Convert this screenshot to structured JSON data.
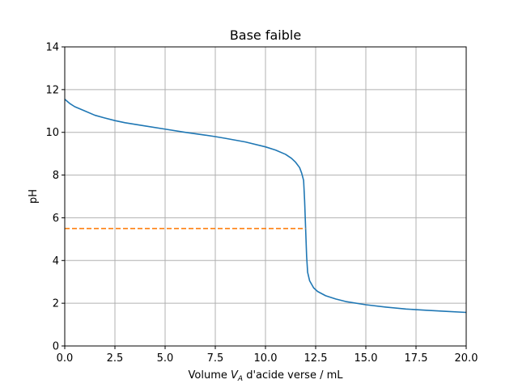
{
  "chart_data": {
    "type": "line",
    "title": "Base faible",
    "xlabel_prefix": "Volume ",
    "xlabel_var": "V",
    "xlabel_sub": "A",
    "xlabel_suffix": " d'acide verse / mL",
    "ylabel": "pH",
    "xlim": [
      0,
      20
    ],
    "ylim": [
      0,
      14
    ],
    "xticks": [
      0,
      2.5,
      5,
      7.5,
      10,
      12.5,
      15,
      17.5,
      20
    ],
    "xtick_labels": [
      "0.0",
      "2.5",
      "5.0",
      "7.5",
      "10.0",
      "12.5",
      "15.0",
      "17.5",
      "20.0"
    ],
    "yticks": [
      0,
      2,
      4,
      6,
      8,
      10,
      12,
      14
    ],
    "ytick_labels": [
      "0",
      "2",
      "4",
      "6",
      "8",
      "10",
      "12",
      "14"
    ],
    "grid": true,
    "series": [
      {
        "color": "#1f77b4",
        "style": "solid",
        "x": [
          0,
          0.25,
          0.5,
          1,
          1.5,
          2,
          2.5,
          3,
          4,
          5,
          6,
          7,
          7.5,
          8,
          9,
          10,
          10.5,
          11,
          11.3,
          11.5,
          11.7,
          11.8,
          11.9,
          11.95,
          12.0,
          12.05,
          12.1,
          12.2,
          12.4,
          12.6,
          13,
          13.5,
          14,
          15,
          16,
          17,
          17.5,
          18,
          19,
          20
        ],
        "y": [
          11.55,
          11.35,
          11.2,
          11.0,
          10.8,
          10.67,
          10.55,
          10.45,
          10.3,
          10.15,
          10.0,
          9.87,
          9.8,
          9.72,
          9.55,
          9.32,
          9.17,
          8.97,
          8.78,
          8.6,
          8.35,
          8.1,
          7.75,
          6.8,
          5.5,
          4.2,
          3.45,
          3.05,
          2.72,
          2.55,
          2.35,
          2.2,
          2.08,
          1.93,
          1.82,
          1.73,
          1.7,
          1.67,
          1.62,
          1.57
        ]
      },
      {
        "color": "#ff7f0e",
        "style": "dashed",
        "x": [
          0,
          12
        ],
        "y": [
          5.5,
          5.5
        ]
      }
    ]
  }
}
